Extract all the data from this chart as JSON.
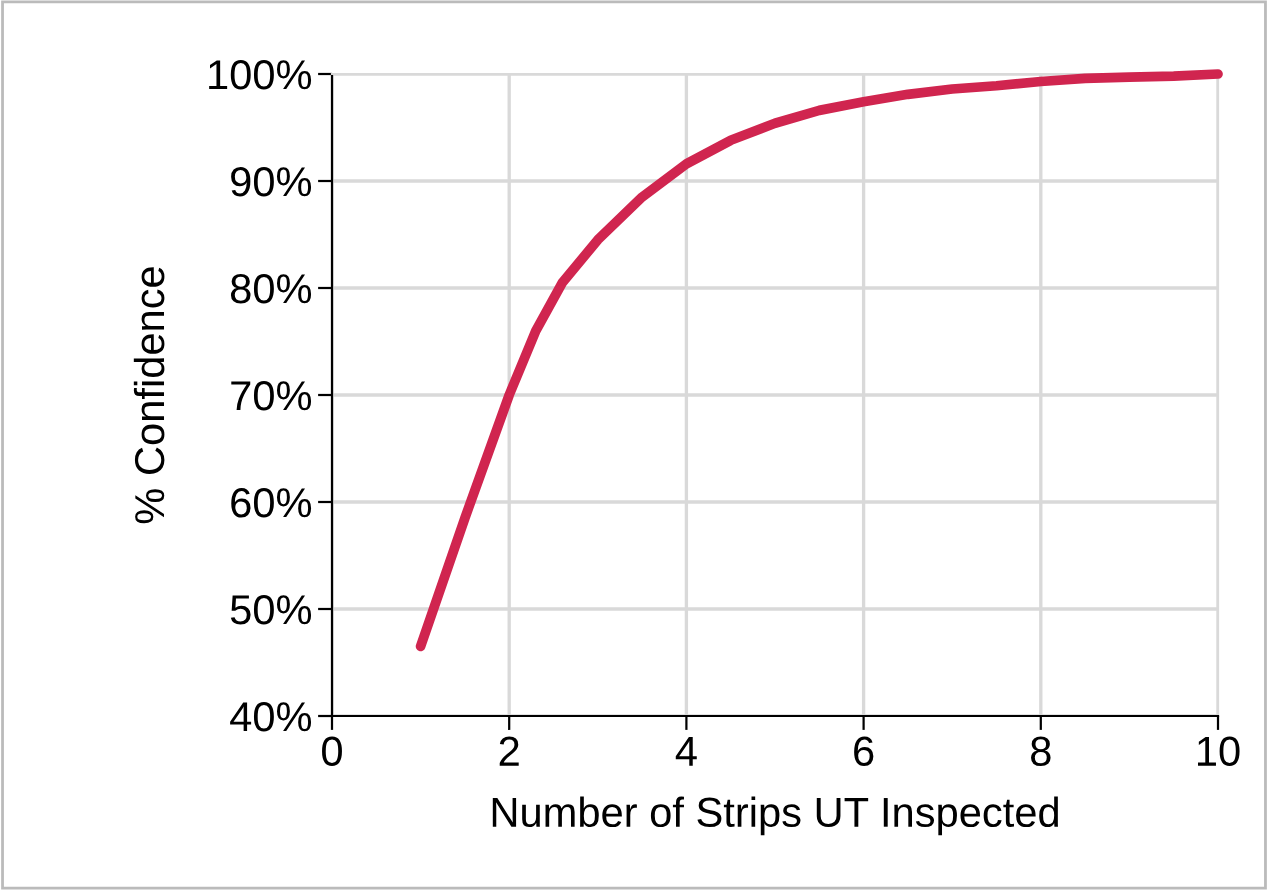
{
  "chart_data": {
    "type": "line",
    "xlabel": "Number of Strips UT Inspected",
    "ylabel": "% Confidence",
    "x": [
      1,
      1.5,
      2,
      2.3,
      2.6,
      3,
      3.5,
      4,
      4.5,
      5,
      5.5,
      6,
      6.5,
      7,
      7.5,
      8,
      8.5,
      9,
      9.5,
      10
    ],
    "series": [
      {
        "color": "#d0254f",
        "values": [
          46.5,
          58.5,
          70,
          76,
          80.5,
          84.5,
          88.5,
          91.6,
          93.8,
          95.4,
          96.6,
          97.4,
          98.1,
          98.6,
          98.9,
          99.3,
          99.6,
          99.7,
          99.8,
          100
        ]
      }
    ],
    "xlim": [
      0,
      10
    ],
    "xticks": [
      0,
      2,
      4,
      6,
      8,
      10
    ],
    "ylim": [
      40,
      100
    ],
    "yticks": [
      {
        "value": 40,
        "label": "40%"
      },
      {
        "value": 50,
        "label": "50%"
      },
      {
        "value": 60,
        "label": "60%"
      },
      {
        "value": 70,
        "label": "70%"
      },
      {
        "value": 80,
        "label": "80%"
      },
      {
        "value": 90,
        "label": "90%"
      },
      {
        "value": 100,
        "label": "100%"
      }
    ],
    "grid": true,
    "line_style": "solid"
  }
}
